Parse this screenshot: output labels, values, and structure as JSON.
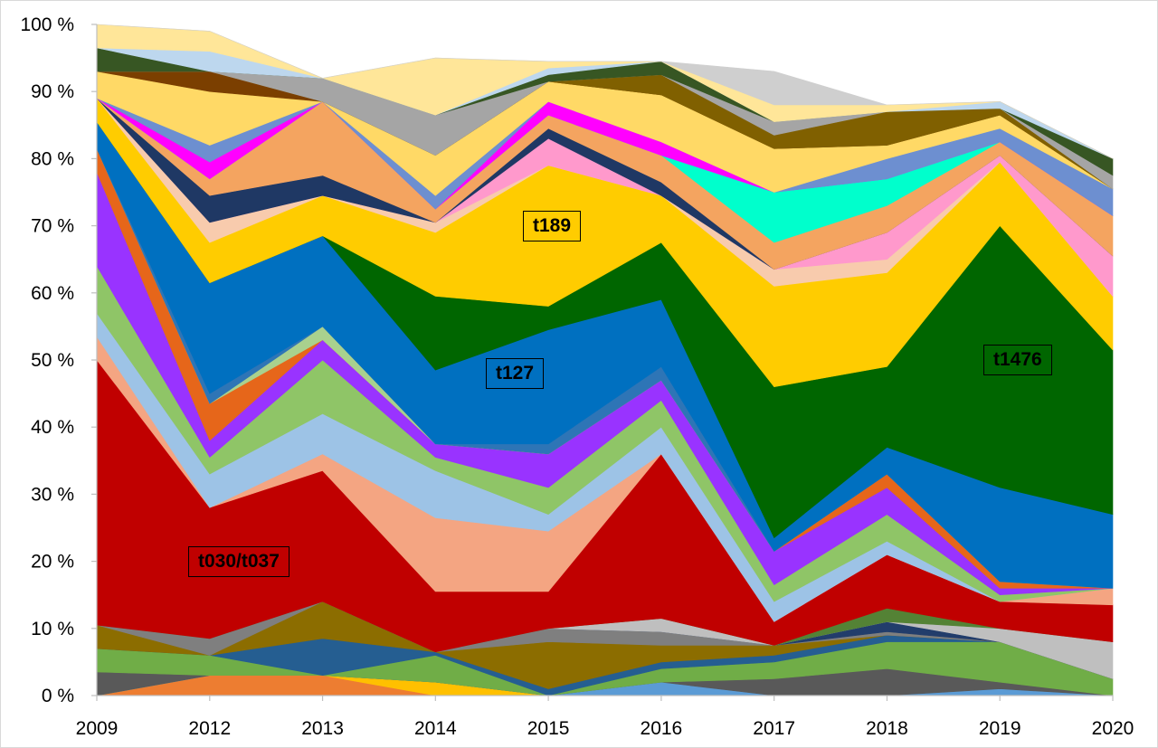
{
  "chart_data": {
    "type": "area",
    "stacking": "percent",
    "x": [
      "2009",
      "2012",
      "2013",
      "2014",
      "2015",
      "2016",
      "2017",
      "2018",
      "2019",
      "2020"
    ],
    "y_ticks": [
      "0 %",
      "10 %",
      "20 %",
      "30 %",
      "40 %",
      "50 %",
      "60 %",
      "70 %",
      "80 %",
      "90 %",
      "100 %"
    ],
    "ylim": [
      0,
      100
    ],
    "grid": false,
    "legend": "none",
    "annotations": [
      {
        "text": "t030/t037",
        "x": "2012",
        "y": 20
      },
      {
        "text": "t127",
        "x": "2015",
        "y": 48
      },
      {
        "text": "t189",
        "x": "2015",
        "y": 70
      },
      {
        "text": "t1476",
        "x": "2019",
        "y": 50
      }
    ],
    "series": [
      {
        "color": "#ed7d31",
        "values": [
          0,
          3,
          3,
          0,
          0,
          0,
          0,
          0,
          0,
          0
        ]
      },
      {
        "color": "#ffc000",
        "values": [
          0,
          0,
          0,
          2,
          0,
          0,
          0,
          0,
          0,
          0
        ]
      },
      {
        "color": "#5b9bd5",
        "values": [
          0,
          0,
          0,
          0,
          0,
          2,
          0,
          0,
          1,
          0
        ]
      },
      {
        "color": "#595959",
        "values": [
          3.5,
          0,
          0,
          0,
          0,
          0,
          2.5,
          4,
          1,
          0
        ]
      },
      {
        "color": "#70ad47",
        "values": [
          3.5,
          3,
          0,
          4,
          0,
          2,
          2.5,
          4,
          6,
          2.5
        ]
      },
      {
        "color": "#255e91",
        "values": [
          0,
          0,
          5.5,
          0.5,
          1,
          1,
          1,
          1,
          0,
          0
        ]
      },
      {
        "color": "#8c6d00",
        "values": [
          3.5,
          0,
          5.5,
          0,
          7,
          2.5,
          1.5,
          0,
          0,
          0
        ]
      },
      {
        "color": "#7f7f7f",
        "values": [
          0,
          2.5,
          0,
          0,
          2,
          2,
          0,
          0.5,
          0,
          0
        ]
      },
      {
        "color": "#223d6b",
        "values": [
          0,
          0,
          0,
          0,
          0,
          0,
          0,
          1.5,
          0,
          0
        ]
      },
      {
        "color": "#bfbfbf",
        "values": [
          0,
          0,
          0,
          0,
          0,
          2,
          0,
          0,
          2,
          5.5
        ]
      },
      {
        "color": "#548235",
        "values": [
          0,
          0,
          0,
          0,
          0,
          0,
          0,
          2,
          0,
          0
        ]
      },
      {
        "color": "#c00000",
        "values": [
          39.5,
          19.5,
          19.5,
          9,
          5.5,
          24.5,
          3.5,
          8,
          4,
          5.5
        ]
      },
      {
        "color": "#f4a582",
        "values": [
          3.5,
          0,
          2.5,
          11,
          9,
          0,
          0,
          0,
          0,
          2.5
        ]
      },
      {
        "color": "#9dc3e6",
        "values": [
          3.5,
          5,
          6,
          7,
          2.5,
          4,
          3,
          2,
          0,
          0
        ]
      },
      {
        "color": "#8fc567",
        "values": [
          7,
          2.5,
          8,
          2,
          4,
          4,
          2.5,
          4,
          1,
          0
        ]
      },
      {
        "color": "#9933ff",
        "values": [
          14,
          2.5,
          3,
          2,
          5,
          3,
          5,
          4,
          1,
          0
        ]
      },
      {
        "color": "#e6661a",
        "values": [
          3.5,
          5.5,
          0,
          0,
          0,
          0,
          0,
          2,
          1,
          0
        ]
      },
      {
        "color": "#a9d18e",
        "values": [
          0,
          0,
          2,
          0,
          0,
          0,
          0,
          0,
          0,
          0
        ]
      },
      {
        "color": "#2e75b6",
        "values": [
          0,
          1.5,
          0,
          0,
          1.5,
          2,
          0,
          0,
          0,
          0
        ]
      },
      {
        "color": "#0070c0",
        "values": [
          4,
          16.5,
          13.5,
          11,
          17,
          10,
          2,
          4,
          14,
          11
        ]
      },
      {
        "color": "#006600",
        "values": [
          0,
          0,
          0,
          11,
          3.5,
          8.5,
          22.5,
          12,
          39,
          24.5
        ]
      },
      {
        "color": "#ffcc00",
        "values": [
          3.5,
          6,
          6,
          9.5,
          21,
          7,
          15,
          14,
          9.5,
          8
        ]
      },
      {
        "color": "#f8cbad",
        "values": [
          0,
          3,
          0,
          1.5,
          0,
          0,
          2.5,
          2,
          0,
          0
        ]
      },
      {
        "color": "#ff99cc",
        "values": [
          0,
          0,
          0,
          0,
          4,
          0,
          0,
          4,
          1,
          6
        ]
      },
      {
        "color": "#1f3864",
        "values": [
          0,
          4,
          3,
          0,
          1.5,
          2,
          0,
          0,
          0,
          0
        ]
      },
      {
        "color": "#f4a460",
        "values": [
          0,
          2.5,
          11,
          2,
          2,
          4,
          4,
          4,
          2,
          6
        ]
      },
      {
        "color": "#00ffcc",
        "values": [
          0,
          0,
          0,
          0,
          0,
          0,
          7.5,
          4,
          0,
          0
        ]
      },
      {
        "color": "#ff00ff",
        "values": [
          0,
          2.5,
          0,
          0,
          2,
          2,
          0,
          0,
          0,
          0
        ]
      },
      {
        "color": "#6d8fd0",
        "values": [
          0,
          2.5,
          0,
          2,
          0,
          0,
          0,
          3,
          2,
          4
        ]
      },
      {
        "color": "#ffd966",
        "values": [
          4,
          8,
          0,
          6,
          3,
          7,
          6.5,
          2,
          2,
          0
        ]
      },
      {
        "color": "#7b3f00",
        "values": [
          0,
          3,
          0,
          0,
          0,
          0,
          0,
          0,
          0,
          0
        ]
      },
      {
        "color": "#806000",
        "values": [
          0,
          0,
          0,
          0,
          0,
          3,
          2,
          5,
          1,
          0
        ]
      },
      {
        "color": "#a5a5a5",
        "values": [
          0,
          0,
          3.5,
          6,
          0,
          0,
          2,
          0,
          0,
          2
        ]
      },
      {
        "color": "#375623",
        "values": [
          3.5,
          0,
          0,
          0,
          1,
          2,
          0,
          0,
          0,
          2.5
        ]
      },
      {
        "color": "#bdd7ee",
        "values": [
          0,
          3,
          0,
          0,
          1,
          0,
          0,
          0,
          1,
          0
        ]
      },
      {
        "color": "#ffe699",
        "values": [
          6.5,
          3,
          0,
          8.5,
          1,
          0,
          2.5,
          1,
          0,
          0
        ]
      },
      {
        "color": "#cfcfcf",
        "values": [
          0,
          0,
          0,
          0,
          0,
          0,
          5,
          0,
          0,
          0
        ]
      }
    ]
  }
}
